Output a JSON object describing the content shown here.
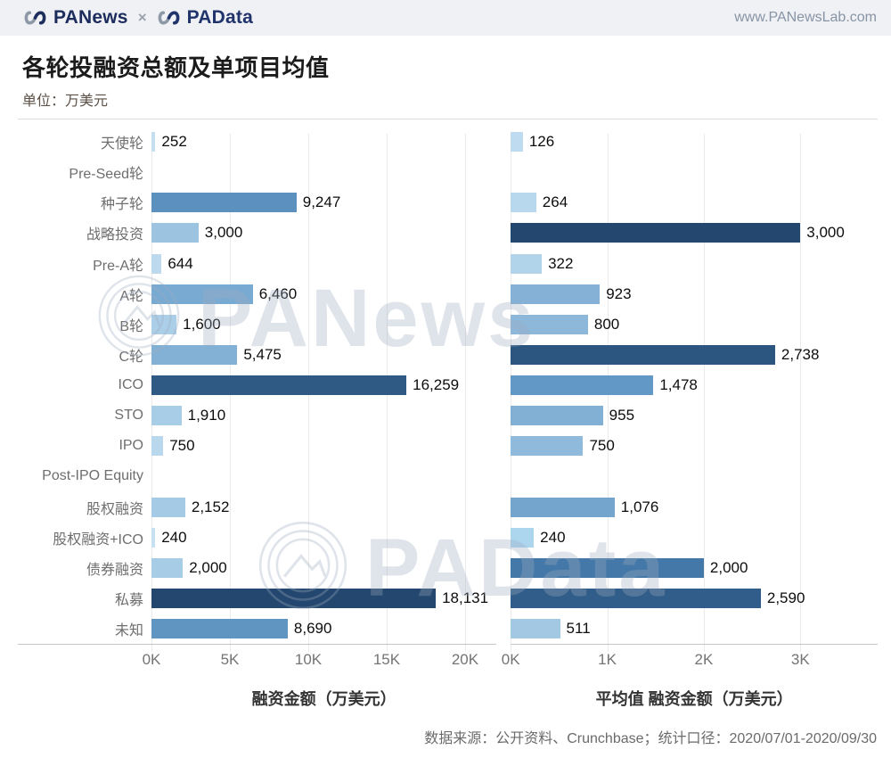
{
  "header": {
    "brand1": "PANews",
    "separator": "×",
    "brand2": "PAData",
    "url": "www.PANewsLab.com"
  },
  "title": "各轮投融资总额及单项目均值",
  "unit_label": "单位：万美元",
  "watermarks": {
    "first": "PANews",
    "second": "PAData"
  },
  "footer": "数据来源：公开资料、Crunchbase；统计口径：2020/07/01-2020/09/30",
  "chart_data": [
    {
      "type": "bar",
      "orientation": "horizontal",
      "xlabel": "融资金额（万美元）",
      "categories": [
        "天使轮",
        "Pre-Seed轮",
        "种子轮",
        "战略投资",
        "Pre-A轮",
        "A轮",
        "B轮",
        "C轮",
        "ICO",
        "STO",
        "IPO",
        "Post-IPO Equity",
        "股权融资",
        "股权融资+ICO",
        "债券融资",
        "私募",
        "未知"
      ],
      "values": [
        252,
        null,
        9247,
        3000,
        644,
        6460,
        1600,
        5475,
        16259,
        1910,
        750,
        null,
        2152,
        240,
        2000,
        18131,
        8690
      ],
      "labels": [
        "252",
        "",
        "9,247",
        "3,000",
        "644",
        "6,460",
        "1,600",
        "5,475",
        "16,259",
        "1,910",
        "750",
        "",
        "2,152",
        "240",
        "2,000",
        "18,131",
        "8,690"
      ],
      "colors": [
        "#c6dff0",
        "",
        "#5b90bf",
        "#9cc4e1",
        "#bcd9ee",
        "#79aad1",
        "#abcfe8",
        "#83b1d6",
        "#2e5a84",
        "#a8cde7",
        "#bad8ed",
        "",
        "#a4cae5",
        "#c7e0f1",
        "#a6cce6",
        "#24476f",
        "#6095c2"
      ],
      "xticks": [
        "0K",
        "5K",
        "10K",
        "15K",
        "20K"
      ],
      "xtick_values": [
        0,
        5000,
        10000,
        15000,
        20000
      ],
      "xlim": [
        0,
        22000
      ],
      "grid": true
    },
    {
      "type": "bar",
      "orientation": "horizontal",
      "xlabel": "平均值 融资金额（万美元）",
      "categories": [
        "天使轮",
        "Pre-Seed轮",
        "种子轮",
        "战略投资",
        "Pre-A轮",
        "A轮",
        "B轮",
        "C轮",
        "ICO",
        "STO",
        "IPO",
        "Post-IPO Equity",
        "股权融资",
        "股权融资+ICO",
        "债券融资",
        "私募",
        "未知"
      ],
      "values": [
        126,
        null,
        264,
        3000,
        322,
        923,
        800,
        2738,
        1478,
        955,
        750,
        null,
        1076,
        240,
        2000,
        2590,
        511
      ],
      "labels": [
        "126",
        "",
        "264",
        "3,000",
        "322",
        "923",
        "800",
        "2,738",
        "1,478",
        "955",
        "750",
        "",
        "1,076",
        "240",
        "2,000",
        "2,590",
        "511"
      ],
      "colors": [
        "#bedbef",
        "",
        "#b8d8ed",
        "#24476f",
        "#b2d4eb",
        "#85b1d6",
        "#8db8da",
        "#2c5680",
        "#6298c5",
        "#82afd4",
        "#90badc",
        "",
        "#74a5cd",
        "#abd6ee",
        "#4478a8",
        "#305d89",
        "#a3c8e4"
      ],
      "xticks": [
        "0K",
        "1K",
        "2K",
        "3K"
      ],
      "xtick_values": [
        0,
        1000,
        2000,
        3000
      ],
      "xlim": [
        0,
        3800
      ],
      "grid": true
    }
  ]
}
